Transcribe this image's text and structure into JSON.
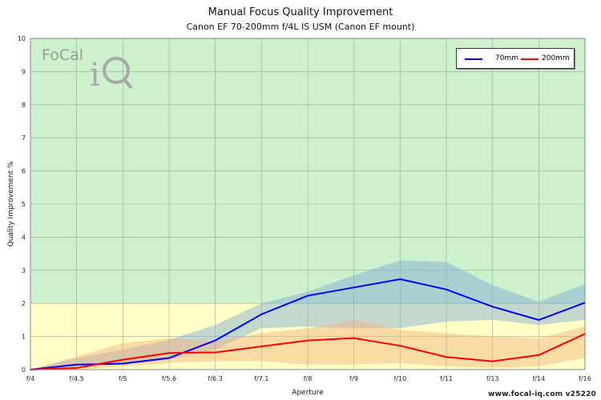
{
  "chart_data": {
    "type": "line",
    "title": "Manual Focus Quality Improvement",
    "subtitle": "Canon EF 70-200mm f/4L IS USM (Canon EF mount)",
    "xlabel": "Aperture",
    "ylabel": "Quality Improvement %",
    "ylim": [
      0,
      10
    ],
    "yticks": [
      "0",
      "1",
      "2",
      "3",
      "4",
      "5",
      "6",
      "7",
      "8",
      "9",
      "10"
    ],
    "categories": [
      "f/4",
      "f/4.5",
      "f/5",
      "f/5.6",
      "f/6.3",
      "f/7.1",
      "f/8",
      "f/9",
      "f/10",
      "f/11",
      "f/13",
      "f/14",
      "f/16"
    ],
    "grid": true,
    "legend_position": "top-right",
    "bands": [
      {
        "from": 2,
        "to": 10,
        "color": "#cdf0cd"
      },
      {
        "from": 0,
        "to": 2,
        "color": "#ffffc6"
      }
    ],
    "series": [
      {
        "name": "70mm",
        "color": "#0000ff",
        "values": [
          0,
          0.15,
          0.18,
          0.35,
          0.88,
          1.67,
          2.23,
          2.48,
          2.73,
          2.42,
          1.9,
          1.5,
          2.02
        ],
        "range_low": [
          0,
          0.1,
          0.15,
          0.3,
          0.6,
          1.25,
          1.3,
          1.25,
          1.25,
          1.45,
          1.5,
          1.35,
          1.5
        ],
        "range_high": [
          0,
          0.35,
          0.6,
          0.9,
          1.35,
          2.0,
          2.35,
          2.85,
          3.3,
          3.25,
          2.55,
          2.05,
          2.58
        ],
        "band_color": "#7fa9d8"
      },
      {
        "name": "200mm",
        "color": "#ff0000",
        "values": [
          0,
          0.05,
          0.3,
          0.5,
          0.52,
          0.7,
          0.88,
          0.95,
          0.72,
          0.38,
          0.25,
          0.44,
          1.08
        ],
        "range_low": [
          0,
          0.0,
          0.1,
          0.2,
          0.25,
          0.25,
          0.15,
          0.15,
          0.2,
          0.1,
          0.05,
          0.1,
          0.35
        ],
        "range_high": [
          0,
          0.4,
          0.8,
          0.95,
          0.85,
          1.1,
          1.25,
          1.5,
          1.2,
          1.1,
          1.0,
          0.95,
          1.3
        ],
        "band_color": "#f5b07a"
      }
    ]
  },
  "logo": {
    "text": "FoCal",
    "mark": "iQ"
  },
  "footer": "www.focal-iq.com  v25220"
}
